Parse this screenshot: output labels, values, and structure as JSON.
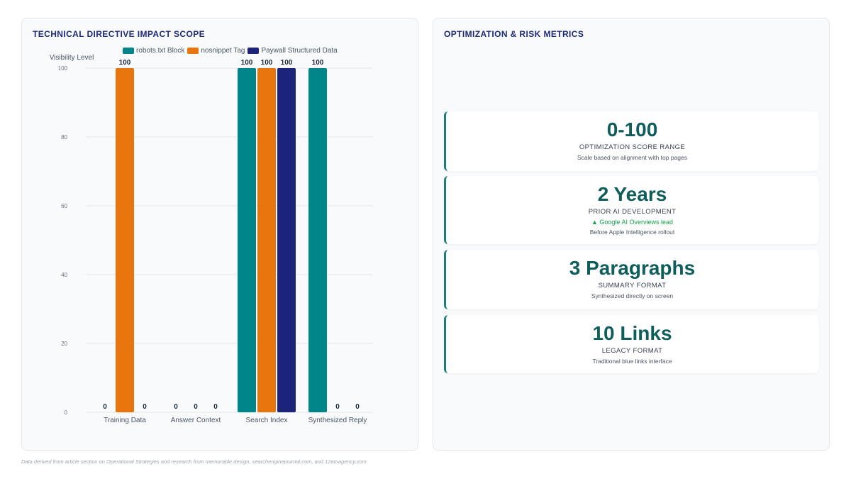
{
  "left_panel": {
    "title": "TECHNICAL DIRECTIVE IMPACT SCOPE"
  },
  "chart_data": {
    "type": "bar",
    "ylabel": "Visibility Level",
    "ylim": [
      0,
      100
    ],
    "yticks": [
      0,
      20,
      40,
      60,
      80,
      100
    ],
    "categories": [
      "Training Data",
      "Answer Context",
      "Search Index",
      "Synthesized Reply"
    ],
    "series": [
      {
        "name": "robots.txt Block",
        "color": "#00868a",
        "values": [
          0,
          0,
          100,
          100
        ]
      },
      {
        "name": "nosnippet Tag",
        "color": "#e8750d",
        "values": [
          100,
          0,
          100,
          0
        ]
      },
      {
        "name": "Paywall Structured Data",
        "color": "#1b237a",
        "values": [
          0,
          0,
          100,
          0
        ]
      }
    ],
    "legend_position": "top",
    "grid": true
  },
  "right_panel": {
    "title": "OPTIMIZATION & RISK METRICS",
    "metrics": [
      {
        "value": "0-100",
        "label": "OPTIMIZATION SCORE RANGE",
        "trend": "",
        "desc": "Scale based on alignment with top pages"
      },
      {
        "value": "2 Years",
        "label": "PRIOR AI DEVELOPMENT",
        "trend": "▲ Google AI Overviews lead",
        "desc": "Before Apple Intelligence rollout"
      },
      {
        "value": "3 Paragraphs",
        "label": "SUMMARY FORMAT",
        "trend": "",
        "desc": "Synthesized directly on screen"
      },
      {
        "value": "10 Links",
        "label": "LEGACY FORMAT",
        "trend": "",
        "desc": "Traditional blue links interface"
      }
    ]
  },
  "footer": {
    "note": "Data derived from article section on Operational Strategies and research from memorable.design, searchenginejournal.com, and 12amagency.com"
  }
}
